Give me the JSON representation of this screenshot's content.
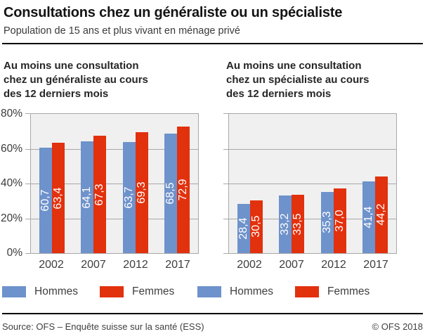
{
  "header": {
    "title": "Consultations chez un généraliste ou un spécialiste",
    "subtitle": "Population de 15 ans et plus vivant en ménage privé"
  },
  "colors": {
    "hommes": "#6E92CB",
    "femmes": "#E2310D",
    "plot_background": "#F0F0F0",
    "grid": "#A8A8A8"
  },
  "chart_data": [
    {
      "type": "bar",
      "heading": "Au moins une consultation\nchez un généraliste au cours\ndes 12 derniers mois",
      "categories": [
        "2002",
        "2007",
        "2012",
        "2017"
      ],
      "series": [
        {
          "name": "Hommes",
          "color": "#6E92CB",
          "values": [
            60.7,
            64.1,
            63.7,
            68.5
          ],
          "value_labels": [
            "60,7",
            "64,1",
            "63,7",
            "68,5"
          ]
        },
        {
          "name": "Femmes",
          "color": "#E2310D",
          "values": [
            63.4,
            67.3,
            69.3,
            72.9
          ],
          "value_labels": [
            "63,4",
            "67,3",
            "69,3",
            "72,9"
          ]
        }
      ],
      "ylim": [
        0,
        80
      ],
      "yticks": [
        0,
        20,
        40,
        60,
        80
      ],
      "ytick_labels": [
        "0%",
        "20%",
        "40%",
        "60%",
        "80%"
      ],
      "show_ytick_labels": true,
      "grid": true,
      "legend_position": "bottom"
    },
    {
      "type": "bar",
      "heading": "Au moins une consultation\nchez un spécialiste au cours\ndes 12 derniers mois",
      "categories": [
        "2002",
        "2007",
        "2012",
        "2017"
      ],
      "series": [
        {
          "name": "Hommes",
          "color": "#6E92CB",
          "values": [
            28.4,
            33.2,
            35.3,
            41.4
          ],
          "value_labels": [
            "28,4",
            "33,2",
            "35,3",
            "41,4"
          ]
        },
        {
          "name": "Femmes",
          "color": "#E2310D",
          "values": [
            30.5,
            33.5,
            37.0,
            44.2
          ],
          "value_labels": [
            "30,5",
            "33,5",
            "37,0",
            "44,2"
          ]
        }
      ],
      "ylim": [
        0,
        80
      ],
      "yticks": [
        0,
        20,
        40,
        60,
        80
      ],
      "ytick_labels": [
        "0%",
        "20%",
        "40%",
        "60%",
        "80%"
      ],
      "show_ytick_labels": false,
      "grid": true,
      "legend_position": "bottom"
    }
  ],
  "legend": {
    "items": [
      {
        "label": "Hommes",
        "color": "#6E92CB"
      },
      {
        "label": "Femmes",
        "color": "#E2310D"
      },
      {
        "label": "Hommes",
        "color": "#6E92CB"
      },
      {
        "label": "Femmes",
        "color": "#E2310D"
      }
    ]
  },
  "footer": {
    "source": "Source: OFS – Enquête suisse sur la santé (ESS)",
    "copyright": "© OFS 2018"
  }
}
